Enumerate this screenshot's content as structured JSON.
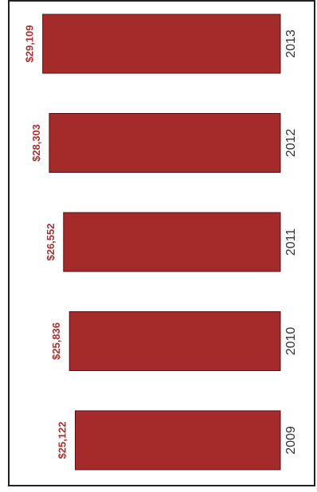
{
  "chart_data": {
    "type": "bar",
    "orientation": "horizontal-bars-rotated",
    "categories": [
      "2013",
      "2012",
      "2011",
      "2010",
      "2009"
    ],
    "values": [
      29109,
      28303,
      26552,
      25836,
      25122
    ],
    "data_labels": [
      "$29,109",
      "$28,303",
      "$26,552",
      "$25,836",
      "$25,122"
    ],
    "title": "",
    "xlabel": "",
    "ylabel": "",
    "legend": "none",
    "grid": false
  },
  "colors": {
    "bar_fill": "#a52a2a",
    "bar_stroke": "#5a1010",
    "label_color": "#b03030",
    "category_color": "#333333",
    "frame_color": "#222222"
  }
}
